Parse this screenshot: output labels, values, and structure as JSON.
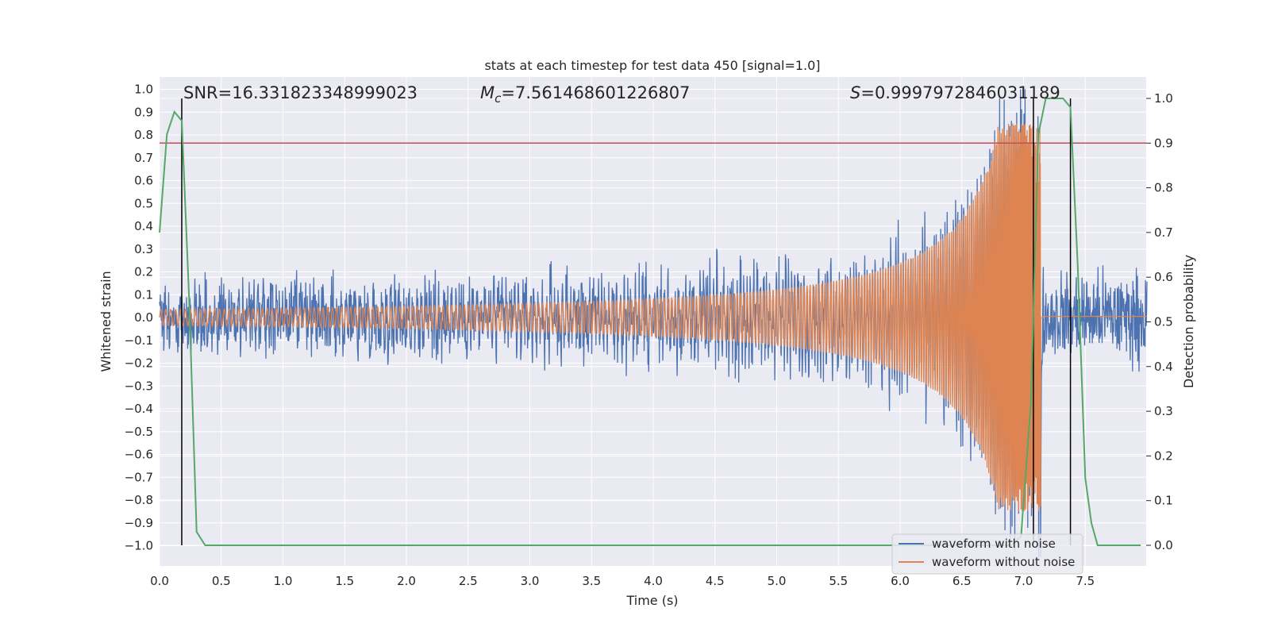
{
  "chart_data": {
    "type": "line",
    "title": "stats at each timestep for test data 450 [signal=1.0]",
    "xlabel": "Time (s)",
    "ylabel": "Whitened strain",
    "y2label": "Detection probability",
    "xlim": [
      0.0,
      8.0
    ],
    "ylim": [
      -1.1,
      1.05
    ],
    "y2lim": [
      -0.05,
      1.025
    ],
    "x_ticks": [
      "0.0",
      "0.5",
      "1.0",
      "1.5",
      "2.0",
      "2.5",
      "3.0",
      "3.5",
      "4.0",
      "4.5",
      "5.0",
      "5.5",
      "6.0",
      "6.5",
      "7.0",
      "7.5"
    ],
    "y_ticks": [
      "1.0",
      "0.9",
      "0.8",
      "0.7",
      "0.6",
      "0.5",
      "0.4",
      "0.3",
      "0.2",
      "0.1",
      "0.0",
      "−0.1",
      "−0.2",
      "−0.3",
      "−0.4",
      "−0.5",
      "−0.6",
      "−0.7",
      "−0.8",
      "−0.9",
      "−1.0"
    ],
    "y2_ticks": [
      "1.0",
      "0.9",
      "0.8",
      "0.7",
      "0.6",
      "0.5",
      "0.4",
      "0.3",
      "0.2",
      "0.1",
      "0.0"
    ],
    "grid": true,
    "legend_position": "lower-right",
    "annotations": {
      "snr": "SNR=16.331823348999023",
      "mc_value": "=7.561468601226807",
      "s_value": "=0.9997972846031189"
    },
    "threshold_line": {
      "value": 0.9,
      "axis": "right",
      "color": "#c44e52"
    },
    "vertical_markers": [
      0.18,
      7.08,
      7.38
    ],
    "series": [
      {
        "name": "waveform with noise",
        "color": "#4c72b0",
        "noise_amplitude": 0.22,
        "chirp_peak_time": 7.14,
        "chirp_peak_amplitude": 0.95
      },
      {
        "name": "waveform without noise",
        "color": "#dd8452",
        "start_amplitude": 0.035,
        "chirp_peak_time": 7.14,
        "chirp_peak_amplitude": 0.85,
        "post_merger_value": 0.005
      },
      {
        "name": "",
        "color": "#55a868",
        "axis": "right",
        "x": [
          0.0,
          0.06,
          0.12,
          0.18,
          0.24,
          0.3,
          0.37,
          0.5,
          1.0,
          2.0,
          3.0,
          4.0,
          5.0,
          6.0,
          6.9,
          6.98,
          7.06,
          7.12,
          7.18,
          7.26,
          7.32,
          7.38,
          7.44,
          7.5,
          7.55,
          7.6,
          7.7,
          7.95
        ],
        "y": [
          0.7,
          0.92,
          0.97,
          0.95,
          0.55,
          0.03,
          0.0,
          0.0,
          0.0,
          0.0,
          0.0,
          0.0,
          0.0,
          0.0,
          0.0,
          0.02,
          0.32,
          0.92,
          1.0,
          1.0,
          1.0,
          0.98,
          0.62,
          0.15,
          0.05,
          0.0,
          0.0,
          0.0
        ]
      }
    ]
  }
}
